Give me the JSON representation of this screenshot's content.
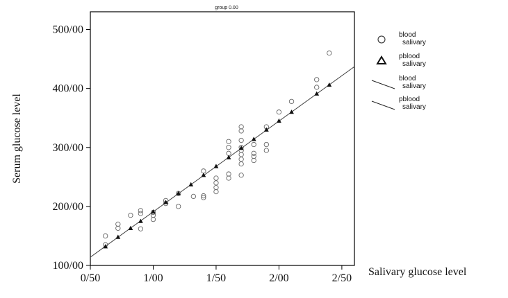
{
  "chart_data": {
    "type": "scatter",
    "title": "group 0.00",
    "xlabel": "Salivary glucose level",
    "ylabel": "Serum glucose level",
    "xlim": [
      0.5,
      2.6
    ],
    "ylim": [
      100,
      530
    ],
    "x_ticks": [
      {
        "value": 0.5,
        "label": "0/50"
      },
      {
        "value": 1.0,
        "label": "1/00"
      },
      {
        "value": 1.5,
        "label": "1/50"
      },
      {
        "value": 2.0,
        "label": "2/00"
      },
      {
        "value": 2.5,
        "label": "2/50"
      }
    ],
    "y_ticks": [
      {
        "value": 100,
        "label": "100/00"
      },
      {
        "value": 200,
        "label": "200/00"
      },
      {
        "value": 300,
        "label": "300/00"
      },
      {
        "value": 400,
        "label": "400/00"
      },
      {
        "value": 500,
        "label": "500/00"
      }
    ],
    "legend_position": "right",
    "legend": [
      {
        "marker": "circle",
        "line1": "blood",
        "line2": "salivary"
      },
      {
        "marker": "triangle",
        "line1": "pblood",
        "line2": "salivary"
      },
      {
        "marker": "line",
        "line1": "blood",
        "line2": "salivary"
      },
      {
        "marker": "line",
        "line1": "pblood",
        "line2": "salivary"
      }
    ],
    "series": [
      {
        "marker": "circle",
        "points": [
          [
            0.62,
            150
          ],
          [
            0.62,
            135
          ],
          [
            0.72,
            170
          ],
          [
            0.72,
            163
          ],
          [
            0.82,
            185
          ],
          [
            0.9,
            193
          ],
          [
            0.9,
            188
          ],
          [
            0.9,
            162
          ],
          [
            1.0,
            190
          ],
          [
            1.0,
            185
          ],
          [
            1.0,
            178
          ],
          [
            1.1,
            205
          ],
          [
            1.1,
            210
          ],
          [
            1.2,
            200
          ],
          [
            1.2,
            222
          ],
          [
            1.32,
            217
          ],
          [
            1.4,
            218
          ],
          [
            1.4,
            215
          ],
          [
            1.4,
            260
          ],
          [
            1.5,
            248
          ],
          [
            1.5,
            240
          ],
          [
            1.5,
            232
          ],
          [
            1.5,
            225
          ],
          [
            1.6,
            310
          ],
          [
            1.6,
            300
          ],
          [
            1.6,
            290
          ],
          [
            1.6,
            255
          ],
          [
            1.6,
            248
          ],
          [
            1.7,
            335
          ],
          [
            1.7,
            328
          ],
          [
            1.7,
            312
          ],
          [
            1.7,
            300
          ],
          [
            1.7,
            295
          ],
          [
            1.7,
            288
          ],
          [
            1.7,
            280
          ],
          [
            1.7,
            272
          ],
          [
            1.7,
            253
          ],
          [
            1.8,
            305
          ],
          [
            1.8,
            290
          ],
          [
            1.8,
            285
          ],
          [
            1.8,
            278
          ],
          [
            1.9,
            335
          ],
          [
            1.9,
            305
          ],
          [
            1.9,
            295
          ],
          [
            2.0,
            360
          ],
          [
            2.1,
            378
          ],
          [
            2.3,
            415
          ],
          [
            2.3,
            402
          ],
          [
            2.4,
            460
          ]
        ]
      },
      {
        "marker": "triangle",
        "points": [
          [
            0.62,
            132
          ],
          [
            0.72,
            148
          ],
          [
            0.82,
            163
          ],
          [
            0.9,
            175
          ],
          [
            1.0,
            191
          ],
          [
            1.1,
            207
          ],
          [
            1.2,
            222
          ],
          [
            1.3,
            237
          ],
          [
            1.4,
            253
          ],
          [
            1.5,
            268
          ],
          [
            1.6,
            283
          ],
          [
            1.7,
            299
          ],
          [
            1.8,
            314
          ],
          [
            1.9,
            330
          ],
          [
            2.0,
            345
          ],
          [
            2.1,
            360
          ],
          [
            2.3,
            391
          ],
          [
            2.4,
            406
          ]
        ]
      }
    ],
    "fit_line": {
      "points": [
        [
          0.5,
          114
        ],
        [
          2.6,
          437
        ]
      ]
    }
  }
}
